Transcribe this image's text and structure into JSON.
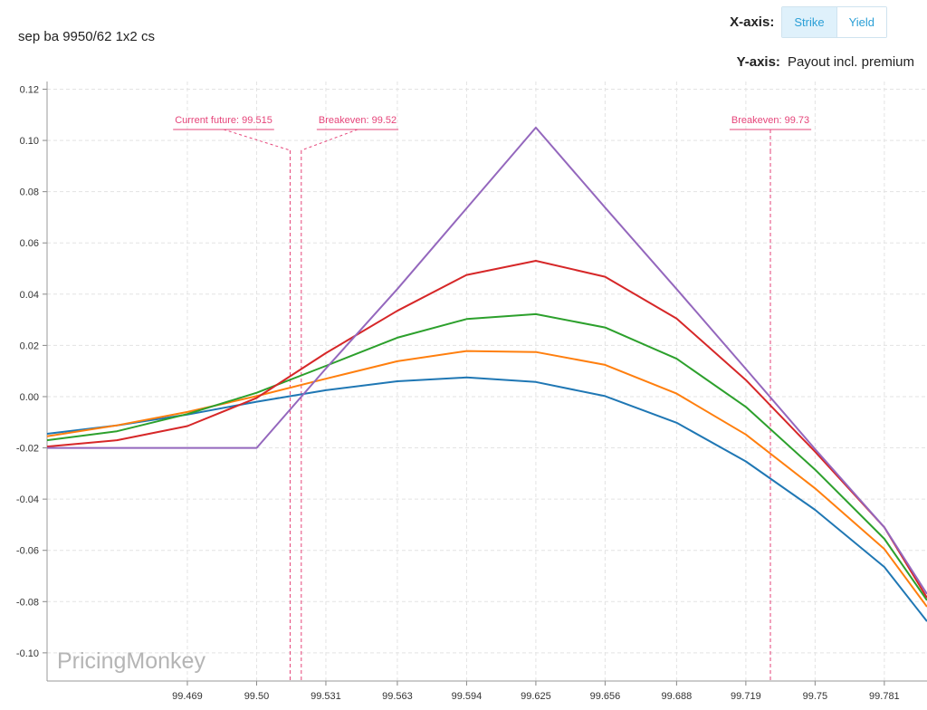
{
  "header": {
    "strategy": "sep ba 9950/62 1x2 cs",
    "xaxis_label": "X-axis:",
    "xaxis_options": [
      "Strike",
      "Yield"
    ],
    "xaxis_selected": "Strike",
    "yaxis_label": "Y-axis:",
    "yaxis_value": "Payout incl. premium"
  },
  "watermark": "PricingMonkey",
  "colors": {
    "series": [
      "#1f77b4",
      "#ff7f0e",
      "#2ca02c",
      "#d62728",
      "#9467bd"
    ],
    "annotation": "#e6457a",
    "grid": "#e3e3e3",
    "toggle_text": "#2a9fd6"
  },
  "chart_data": {
    "type": "line",
    "x_tick_labels": [
      "99.469",
      "99.50",
      "99.531",
      "99.563",
      "99.594",
      "99.625",
      "99.656",
      "99.688",
      "99.719",
      "99.75",
      "99.781"
    ],
    "y_tick_labels": [
      "0.12",
      "0.10",
      "0.08",
      "0.06",
      "0.04",
      "0.02",
      "0.00",
      "-0.02",
      "-0.04",
      "-0.06",
      "-0.08",
      "-0.10"
    ],
    "xlim": [
      99.4062,
      99.8001
    ],
    "ylim": [
      -0.111,
      0.123
    ],
    "grid": true,
    "x": [
      99.4062,
      99.4375,
      99.469,
      99.5,
      99.531,
      99.563,
      99.594,
      99.625,
      99.656,
      99.688,
      99.719,
      99.75,
      99.781,
      99.8001
    ],
    "series": [
      {
        "values": [
          -0.0145,
          -0.0112,
          -0.007,
          -0.002,
          0.0025,
          0.006,
          0.0075,
          0.0057,
          0.0002,
          -0.0102,
          -0.0253,
          -0.0442,
          -0.0665,
          -0.0877
        ]
      },
      {
        "values": [
          -0.0155,
          -0.0112,
          -0.006,
          0.0002,
          0.007,
          0.0138,
          0.0178,
          0.0174,
          0.0124,
          0.0012,
          -0.0148,
          -0.0358,
          -0.0595,
          -0.082
        ]
      },
      {
        "values": [
          -0.017,
          -0.0135,
          -0.0068,
          0.0015,
          0.012,
          0.023,
          0.0303,
          0.0322,
          0.027,
          0.0148,
          -0.004,
          -0.0285,
          -0.0555,
          -0.0795
        ]
      },
      {
        "values": [
          -0.0195,
          -0.017,
          -0.0115,
          -0.0005,
          0.017,
          0.0335,
          0.0475,
          0.053,
          0.0468,
          0.0305,
          0.0065,
          -0.0215,
          -0.051,
          -0.0785
        ]
      },
      {
        "values": [
          -0.02,
          -0.02,
          -0.02,
          -0.02,
          0.011,
          0.042,
          0.0735,
          0.105,
          0.0738,
          0.042,
          0.0108,
          -0.0205,
          -0.051,
          -0.077
        ]
      }
    ],
    "annotations": [
      {
        "label": "Current future: 99.515",
        "x": 99.515
      },
      {
        "label": "Breakeven: 99.52",
        "x": 99.52
      },
      {
        "label": "Breakeven: 99.73",
        "x": 99.73
      }
    ]
  }
}
